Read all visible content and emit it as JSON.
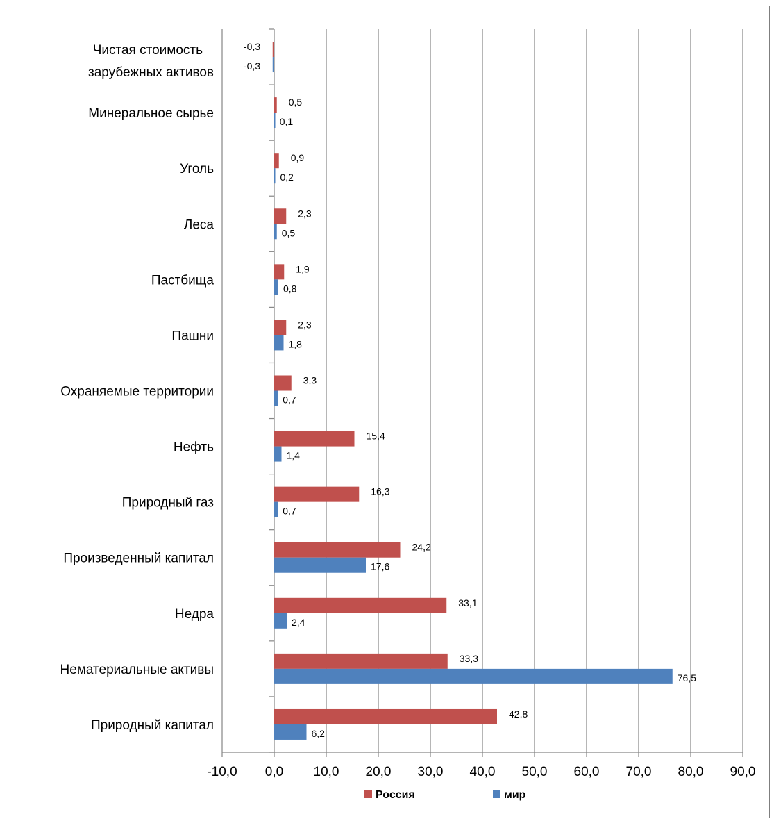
{
  "chart_data": {
    "type": "bar",
    "orientation": "horizontal",
    "title": "",
    "xlabel": "",
    "ylabel": "",
    "xlim": [
      -10,
      90
    ],
    "x_ticks": [
      -10,
      0,
      10,
      20,
      30,
      40,
      50,
      60,
      70,
      80,
      90
    ],
    "x_tick_labels": [
      "-10,0",
      "0,0",
      "10,0",
      "20,0",
      "30,0",
      "40,0",
      "50,0",
      "60,0",
      "70,0",
      "80,0",
      "90,0"
    ],
    "grid": "vertical",
    "legend_position": "bottom",
    "categories": [
      [
        "Природный капитал"
      ],
      [
        "Нематериальные активы"
      ],
      [
        "Недра"
      ],
      [
        "Произведенный капитал"
      ],
      [
        "Природный газ"
      ],
      [
        "Нефть"
      ],
      [
        "Охраняемые территории"
      ],
      [
        "Пашни"
      ],
      [
        "Пастбища"
      ],
      [
        "Леса"
      ],
      [
        "Уголь"
      ],
      [
        "Минеральное сырье"
      ],
      [
        "Чистая стоимость",
        "зарубежных активов"
      ]
    ],
    "series": [
      {
        "name": "Россия",
        "color": "#c0504d",
        "values": [
          42.8,
          33.3,
          33.1,
          24.2,
          16.3,
          15.4,
          3.3,
          2.3,
          1.9,
          2.3,
          0.9,
          0.5,
          -0.3
        ],
        "labels": [
          "42,8",
          "33,3",
          "33,1",
          "24,2",
          "16,3",
          "15,4",
          "3,3",
          "2,3",
          "1,9",
          "2,3",
          "0,9",
          "0,5",
          "-0,3"
        ]
      },
      {
        "name": "мир",
        "color": "#4f81bd",
        "values": [
          6.2,
          76.5,
          2.4,
          17.6,
          0.7,
          1.4,
          0.7,
          1.8,
          0.8,
          0.5,
          0.2,
          0.1,
          -0.3
        ],
        "labels": [
          "6,2",
          "76,5",
          "2,4",
          "17,6",
          "0,7",
          "1,4",
          "0,7",
          "1,8",
          "0,8",
          "0,5",
          "0,2",
          "0,1",
          "-0,3"
        ]
      }
    ]
  }
}
